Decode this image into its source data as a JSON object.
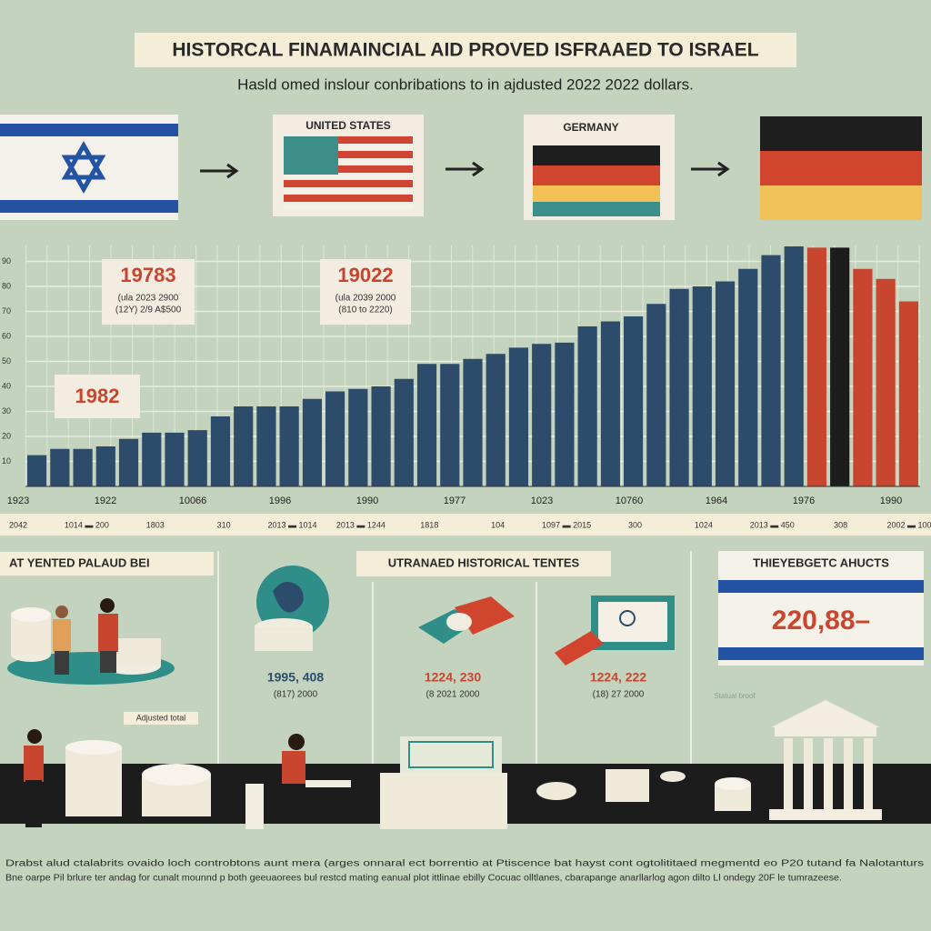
{
  "header": {
    "title": "HISTORCAL FINAMAINCIAL AID PROVED ISFRAAED TO ISRAEL",
    "subtitle": "Hasld omed inslour conbribations to in ajdusted 2022 2022 dollars."
  },
  "flags": {
    "us_label": "UNITED STATES",
    "germany_label": "GERMANY"
  },
  "chart_data": {
    "type": "bar",
    "categories": [
      null,
      null,
      null,
      null,
      null,
      null,
      null,
      null,
      null,
      null,
      null,
      null,
      null,
      null,
      null,
      null,
      null,
      null,
      null,
      null,
      null,
      null,
      null,
      null,
      null,
      null,
      null,
      null,
      null,
      null,
      null,
      null,
      null,
      null,
      null,
      null,
      null,
      null,
      null
    ],
    "values": [
      12.5,
      15,
      15,
      16,
      19,
      21.5,
      21.5,
      22.5,
      28,
      32,
      32,
      32,
      35,
      38,
      39,
      40,
      43,
      49,
      49,
      51,
      53,
      55.5,
      57,
      57.5,
      64,
      66,
      68,
      73,
      79,
      80,
      82,
      87,
      92.5,
      96,
      95.5,
      95.5,
      87,
      83,
      74
    ],
    "colors": [
      "#2d4b6b",
      "#2d4b6b",
      "#2d4b6b",
      "#2d4b6b",
      "#2d4b6b",
      "#2d4b6b",
      "#2d4b6b",
      "#2d4b6b",
      "#2d4b6b",
      "#2d4b6b",
      "#2d4b6b",
      "#2d4b6b",
      "#2d4b6b",
      "#2d4b6b",
      "#2d4b6b",
      "#2d4b6b",
      "#2d4b6b",
      "#2d4b6b",
      "#2d4b6b",
      "#2d4b6b",
      "#2d4b6b",
      "#2d4b6b",
      "#2d4b6b",
      "#2d4b6b",
      "#2d4b6b",
      "#2d4b6b",
      "#2d4b6b",
      "#2d4b6b",
      "#2d4b6b",
      "#2d4b6b",
      "#2d4b6b",
      "#2d4b6b",
      "#2d4b6b",
      "#2d4b6b",
      "#c8452f",
      "#1c1c1c",
      "#c8452f",
      "#c8452f",
      "#c8452f"
    ],
    "ylim": [
      0,
      100
    ],
    "yticks": [
      10,
      20,
      30,
      40,
      50,
      60,
      70,
      80,
      90
    ],
    "grid": true,
    "annotations": [
      {
        "title": "19783",
        "lines": [
          "(ula 2023 2900",
          "(12Y) 2/9 A$500"
        ]
      },
      {
        "title": "19022",
        "lines": [
          "(ula 2039 2000",
          "(810 to 2220)"
        ]
      },
      {
        "title": "1982",
        "lines": []
      }
    ],
    "axis_labels": [
      "1923",
      "1922",
      "10066",
      "1996",
      "1990",
      "1977",
      "1023",
      "10760",
      "1964",
      "1976",
      "1990"
    ],
    "axis_sublabels": [
      "2042",
      "1014 ▬ 200",
      "1803",
      "310",
      "2013 ▬ 1014",
      "2013 ▬ 1244",
      "1818",
      "104",
      "1097 ▬ 2015",
      "300",
      "1024",
      "2013 ▬ 450",
      "308",
      "2002 ▬ 100"
    ]
  },
  "panels": [
    {
      "title": "AT YENTED PALAUD BEI",
      "figure": "1995, 408",
      "note": "(817) 2000"
    },
    {
      "title": "UTRANAED HISTORICAL TENTES",
      "figure": "1224, 230",
      "note": "(8 2021 2000"
    },
    {
      "title": "",
      "figure": "1224, 222",
      "note": "(18) 27 2000"
    }
  ],
  "summary": {
    "title": "THIEYEBGETC AHUCTS",
    "value": "220,88–"
  },
  "captions": [
    "Adjusted total",
    "Statual broof"
  ],
  "footer": [
    "Drabst alud ctalabrits ovaido loch controbtons aunt mera (arges onnaral ect borrentio at Ptiscence bat hayst cont ogtolititaed megmentd eo P20 tutand fa Nalotanturs",
    "Bne oarpe Pil brlure ter andag for cunalt mounnd p both geeuaorees bul restcd mating eanual plot ittlinae ebilly Cocuac olltlanes, cbarapange anarllarlog agon dilto Ll ondegy 20F le tumrazeese."
  ]
}
